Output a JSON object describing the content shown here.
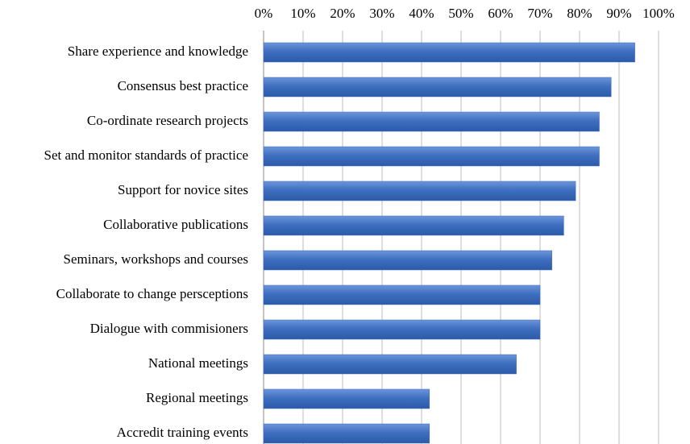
{
  "chart_data": {
    "type": "bar",
    "orientation": "horizontal",
    "categories": [
      "Share experience and knowledge",
      "Consensus best practice",
      "Co-ordinate research projects",
      "Set and monitor standards of practice",
      "Support for novice sites",
      "Collaborative publications",
      "Seminars, workshops and courses",
      "Collaborate to change persceptions",
      "Dialogue with commisioners",
      "National meetings",
      "Regional meetings",
      "Accredit training events"
    ],
    "values": [
      94,
      88,
      85,
      85,
      79,
      76,
      73,
      70,
      70,
      64,
      42,
      42
    ],
    "color": "#3f6fc0",
    "xlim": [
      0,
      100
    ],
    "xticks": [
      {
        "value": 0,
        "label": "0%"
      },
      {
        "value": 10,
        "label": "10%"
      },
      {
        "value": 20,
        "label": "20%"
      },
      {
        "value": 30,
        "label": "30%"
      },
      {
        "value": 40,
        "label": "40%"
      },
      {
        "value": 50,
        "label": "50%"
      },
      {
        "value": 60,
        "label": "60%"
      },
      {
        "value": 70,
        "label": "70%"
      },
      {
        "value": 80,
        "label": "80%"
      },
      {
        "value": 90,
        "label": "90%"
      },
      {
        "value": 100,
        "label": "100%"
      }
    ],
    "grid": true
  }
}
